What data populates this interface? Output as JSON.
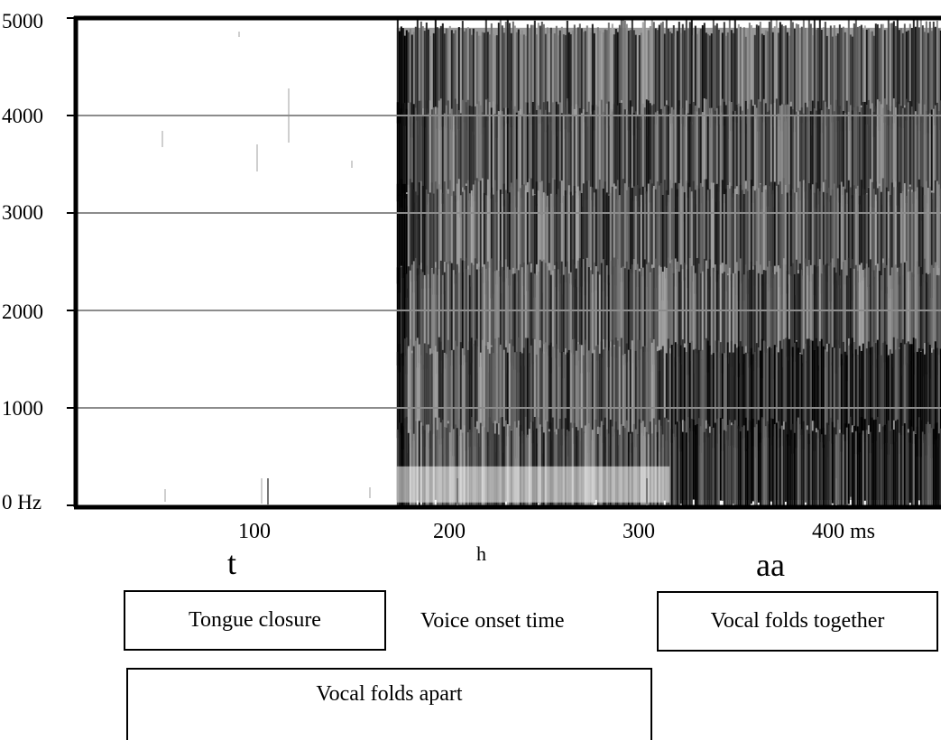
{
  "chart_data": {
    "type": "heatmap",
    "title": "",
    "xlabel": "",
    "ylabel": "",
    "y_ticks": [
      "5000",
      "4000",
      "3000",
      "2000",
      "1000",
      "0 Hz"
    ],
    "x_ticks": [
      "100",
      "200",
      "300",
      "400 ms"
    ],
    "y_unit": "Hz",
    "x_unit": "ms",
    "ylim": [
      0,
      5000
    ],
    "xlim": [
      0,
      455
    ],
    "grid": true,
    "voicing_onset_ms": 168,
    "vowel_onset_ms": 312
  },
  "segments": {
    "t": "t",
    "h": "h",
    "aa": "aa"
  },
  "annotations": {
    "tongue_closure": "Tongue closure",
    "voice_onset_time": "Voice onset time",
    "vocal_folds_together": "Vocal folds together",
    "vocal_folds_apart": "Vocal folds apart"
  },
  "colors": {
    "axis": "#000000",
    "grid": "#8c8c8c",
    "spectrogram_dark": "#111111",
    "background": "#ffffff"
  }
}
